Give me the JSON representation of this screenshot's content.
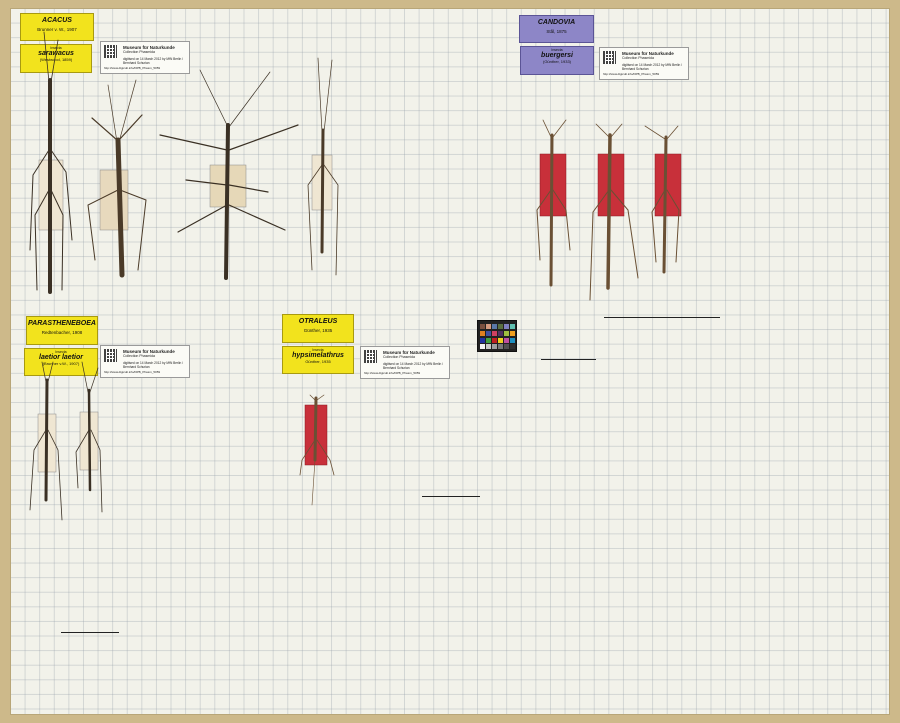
{
  "labels": {
    "acacus": {
      "genus": "ACACUS",
      "genus_author": "Brunner v. W., 1907",
      "rank": "Insecta",
      "species": "sarawacus",
      "species_author": "(Westwood, 1859)"
    },
    "candovia": {
      "genus": "CANDOVIA",
      "genus_author": "Stål, 1875",
      "rank": "Insecta",
      "species": "buergersi",
      "species_author": "(Günther, 1933)"
    },
    "parastheneboea": {
      "genus": "PARASTHENEBOEA",
      "genus_author": "Redtenbacher, 1908",
      "rank": "Insecta",
      "species": "laetior laetior",
      "species_author": "(Brunner v.W., 1907)"
    },
    "otraleus": {
      "genus": "OTRALEUS",
      "genus_author": "Günther, 1935",
      "rank": "Insecta",
      "species": "hypsimelathrus",
      "species_author": "Günther, 1935"
    }
  },
  "museum_label": {
    "title": "Museum für Naturkunde",
    "subtitle": "Collection Phasmida",
    "digitised": "digitised on 14 March 2012 by MfN Berlin / Bernhard Schurian",
    "url": "http://www.digicult.info/DPB_Phasm_5059"
  },
  "colors": {
    "genus_label": "#f2e31d",
    "candovia_label": "#8d86c7",
    "board": "#f2f2ea",
    "frame": "#cdb98a",
    "specimen_pad": "#c8303a"
  },
  "icons": [
    "qr-code-icon",
    "color-checker-icon"
  ]
}
